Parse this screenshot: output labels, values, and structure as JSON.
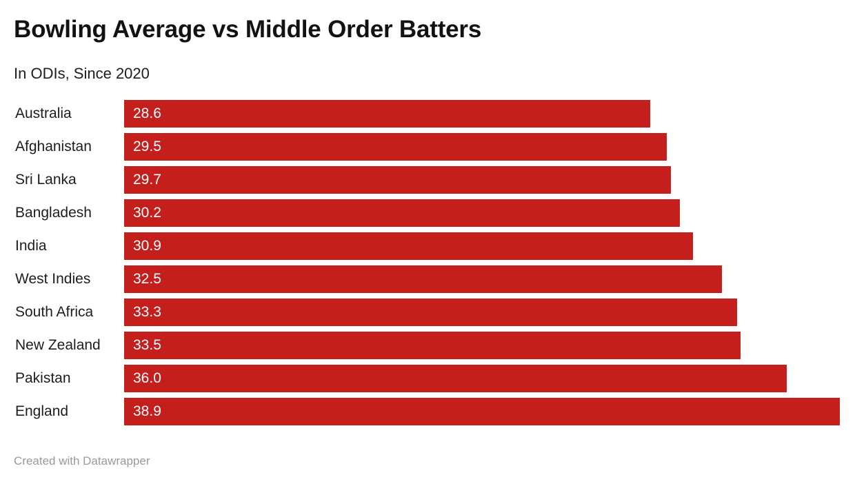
{
  "header": {
    "title": "Bowling Average vs Middle Order Batters",
    "subtitle": "In ODIs, Since 2020"
  },
  "footer": {
    "credit": "Created with Datawrapper"
  },
  "style": {
    "bar_color": "#c41e1d",
    "value_text_color": "#ffffff",
    "label_text_color": "#1d1d1d",
    "credit_text_color": "#9a9a9a"
  },
  "chart_data": {
    "type": "bar",
    "orientation": "horizontal",
    "title": "Bowling Average vs Middle Order Batters",
    "subtitle": "In ODIs, Since 2020",
    "categories": [
      "Australia",
      "Afghanistan",
      "Sri Lanka",
      "Bangladesh",
      "India",
      "West Indies",
      "South Africa",
      "New Zealand",
      "Pakistan",
      "England"
    ],
    "values": [
      28.6,
      29.5,
      29.7,
      30.2,
      30.9,
      32.5,
      33.3,
      33.5,
      36.0,
      38.9
    ],
    "value_labels": [
      "28.6",
      "29.5",
      "29.7",
      "30.2",
      "30.9",
      "32.5",
      "33.3",
      "33.5",
      "36.0",
      "38.9"
    ],
    "xlabel": "",
    "ylabel": "",
    "xlim": [
      0,
      38.9
    ],
    "grid": false,
    "legend": false,
    "value_labels_inside_bars": true,
    "bar_color": "#c41e1d"
  }
}
